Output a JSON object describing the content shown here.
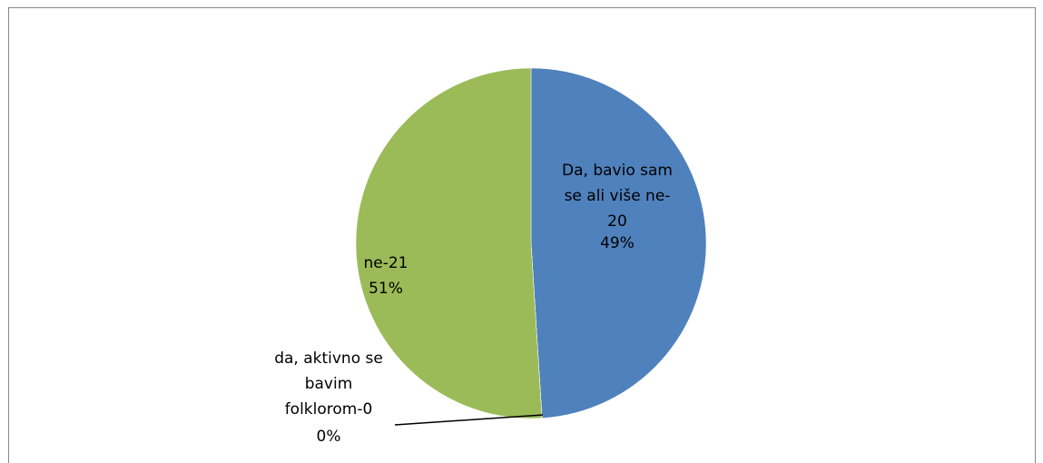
{
  "chart_data": {
    "type": "pie",
    "categories": [
      "Da, bavio sam se ali više ne- 20",
      "da, aktivno se bavim folklorom-0",
      "ne-21"
    ],
    "values": [
      49,
      0,
      51
    ],
    "value_labels": [
      "49%",
      "0%",
      "51%"
    ],
    "colors": [
      "#4f81bd",
      "#c0504d",
      "#9bbb59"
    ]
  }
}
